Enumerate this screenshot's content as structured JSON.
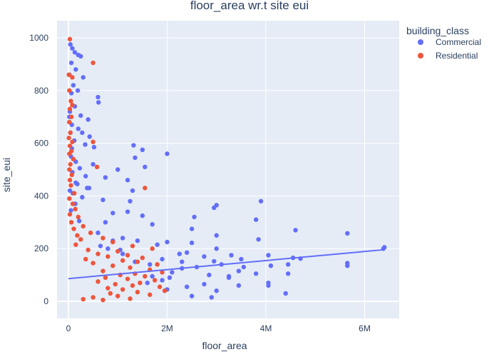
{
  "chart_data": {
    "type": "scatter",
    "title": "floor_area wr.t site eui",
    "xlabel": "floor_area",
    "ylabel": "site_eui",
    "xlim": [
      -230000,
      6700000
    ],
    "ylim": [
      -65,
      1065
    ],
    "x_ticks": [
      0,
      2000000,
      4000000,
      6000000
    ],
    "x_tick_labels": [
      "0",
      "2M",
      "4M",
      "6M"
    ],
    "y_ticks": [
      0,
      200,
      400,
      600,
      800,
      1000
    ],
    "y_tick_labels": [
      "0",
      "200",
      "400",
      "600",
      "800",
      "1000"
    ],
    "grid": true,
    "legend": {
      "title": "building_class",
      "position": "top-right"
    },
    "series": [
      {
        "name": "Commercial",
        "color": "#636efa",
        "points": [
          [
            40000,
            975
          ],
          [
            80000,
            960
          ],
          [
            130000,
            945
          ],
          [
            200000,
            935
          ],
          [
            250000,
            930
          ],
          [
            60000,
            905
          ],
          [
            150000,
            880
          ],
          [
            20000,
            860
          ],
          [
            300000,
            850
          ],
          [
            100000,
            820
          ],
          [
            190000,
            800
          ],
          [
            60000,
            790
          ],
          [
            600000,
            775
          ],
          [
            610000,
            755
          ],
          [
            130000,
            740
          ],
          [
            30000,
            720
          ],
          [
            250000,
            705
          ],
          [
            400000,
            690
          ],
          [
            70000,
            670
          ],
          [
            200000,
            655
          ],
          [
            280000,
            640
          ],
          [
            430000,
            625
          ],
          [
            120000,
            610
          ],
          [
            340000,
            595
          ],
          [
            1320000,
            592
          ],
          [
            520000,
            585
          ],
          [
            1500000,
            575
          ],
          [
            2000000,
            560
          ],
          [
            50000,
            550
          ],
          [
            1350000,
            545
          ],
          [
            150000,
            530
          ],
          [
            500000,
            520
          ],
          [
            230000,
            505
          ],
          [
            1550000,
            510
          ],
          [
            1000000,
            500
          ],
          [
            80000,
            490
          ],
          [
            350000,
            475
          ],
          [
            750000,
            470
          ],
          [
            1200000,
            460
          ],
          [
            180000,
            445
          ],
          [
            420000,
            430
          ],
          [
            1300000,
            420
          ],
          [
            90000,
            410
          ],
          [
            280000,
            395
          ],
          [
            700000,
            385
          ],
          [
            1250000,
            380
          ],
          [
            3900000,
            380
          ],
          [
            140000,
            370
          ],
          [
            3000000,
            365
          ],
          [
            2950000,
            355
          ],
          [
            50000,
            345
          ],
          [
            1200000,
            340
          ],
          [
            900000,
            335
          ],
          [
            1500000,
            325
          ],
          [
            2550000,
            320
          ],
          [
            3800000,
            310
          ],
          [
            220000,
            305
          ],
          [
            750000,
            300
          ],
          [
            1700000,
            292
          ],
          [
            2500000,
            275
          ],
          [
            4600000,
            270
          ],
          [
            5650000,
            258
          ],
          [
            3000000,
            250
          ],
          [
            1100000,
            240
          ],
          [
            3850000,
            235
          ],
          [
            1400000,
            230
          ],
          [
            2000000,
            225
          ],
          [
            2500000,
            222
          ],
          [
            1800000,
            215
          ],
          [
            650000,
            210
          ],
          [
            3000000,
            200
          ],
          [
            6400000,
            205
          ],
          [
            6380000,
            200
          ],
          [
            1050000,
            195
          ],
          [
            2400000,
            185
          ],
          [
            2250000,
            180
          ],
          [
            3300000,
            175
          ],
          [
            4050000,
            175
          ],
          [
            2750000,
            170
          ],
          [
            4550000,
            165
          ],
          [
            3500000,
            160
          ],
          [
            1900000,
            160
          ],
          [
            4700000,
            162
          ],
          [
            2950000,
            152
          ],
          [
            5650000,
            145
          ],
          [
            3100000,
            140
          ],
          [
            4450000,
            140
          ],
          [
            5650000,
            135
          ],
          [
            3550000,
            130
          ],
          [
            2600000,
            130
          ],
          [
            4100000,
            135
          ],
          [
            2300000,
            125
          ],
          [
            3450000,
            115
          ],
          [
            2100000,
            110
          ],
          [
            3800000,
            105
          ],
          [
            4450000,
            105
          ],
          [
            2850000,
            100
          ],
          [
            3250000,
            95
          ],
          [
            1700000,
            95
          ],
          [
            2050000,
            90
          ],
          [
            3250000,
            90
          ],
          [
            4050000,
            70
          ],
          [
            2750000,
            65
          ],
          [
            3450000,
            60
          ],
          [
            4050000,
            60
          ],
          [
            2400000,
            55
          ],
          [
            2000000,
            45
          ],
          [
            3000000,
            40
          ],
          [
            2500000,
            20
          ],
          [
            2900000,
            15
          ],
          [
            4400000,
            30
          ],
          [
            1600000,
            70
          ],
          [
            1900000,
            80
          ],
          [
            1650000,
            140
          ],
          [
            2300000,
            150
          ],
          [
            1350000,
            150
          ],
          [
            1100000,
            180
          ],
          [
            800000,
            200
          ],
          [
            900000,
            230
          ],
          [
            600000,
            260
          ],
          [
            30000,
            420
          ],
          [
            150000,
            450
          ],
          [
            70000,
            580
          ],
          [
            40000,
            640
          ],
          [
            20000,
            700
          ],
          [
            380000,
            430
          ]
        ]
      },
      {
        "name": "Residential",
        "color": "#ef553b",
        "points": [
          [
            30000,
            995
          ],
          [
            500000,
            905
          ],
          [
            10000,
            860
          ],
          [
            80000,
            850
          ],
          [
            20000,
            800
          ],
          [
            50000,
            760
          ],
          [
            80000,
            745
          ],
          [
            30000,
            730
          ],
          [
            60000,
            700
          ],
          [
            20000,
            680
          ],
          [
            40000,
            640
          ],
          [
            10000,
            620
          ],
          [
            80000,
            605
          ],
          [
            500000,
            605
          ],
          [
            30000,
            590
          ],
          [
            60000,
            570
          ],
          [
            20000,
            560
          ],
          [
            100000,
            540
          ],
          [
            40000,
            520
          ],
          [
            580000,
            510
          ],
          [
            20000,
            500
          ],
          [
            70000,
            480
          ],
          [
            30000,
            460
          ],
          [
            1550000,
            430
          ],
          [
            50000,
            440
          ],
          [
            120000,
            410
          ],
          [
            20000,
            390
          ],
          [
            90000,
            370
          ],
          [
            140000,
            350
          ],
          [
            30000,
            330
          ],
          [
            200000,
            320
          ],
          [
            60000,
            300
          ],
          [
            300000,
            285
          ],
          [
            110000,
            275
          ],
          [
            450000,
            260
          ],
          [
            180000,
            250
          ],
          [
            700000,
            240
          ],
          [
            250000,
            235
          ],
          [
            900000,
            225
          ],
          [
            150000,
            215
          ],
          [
            1300000,
            210
          ],
          [
            1700000,
            200
          ],
          [
            400000,
            195
          ],
          [
            1000000,
            190
          ],
          [
            600000,
            180
          ],
          [
            1200000,
            175
          ],
          [
            800000,
            170
          ],
          [
            1500000,
            165
          ],
          [
            350000,
            160
          ],
          [
            1100000,
            155
          ],
          [
            1400000,
            150
          ],
          [
            500000,
            145
          ],
          [
            1800000,
            140
          ],
          [
            900000,
            135
          ],
          [
            1250000,
            128
          ],
          [
            1650000,
            120
          ],
          [
            700000,
            115
          ],
          [
            1900000,
            110
          ],
          [
            1350000,
            105
          ],
          [
            1050000,
            100
          ],
          [
            1550000,
            95
          ],
          [
            750000,
            90
          ],
          [
            1200000,
            85
          ],
          [
            1750000,
            80
          ],
          [
            600000,
            75
          ],
          [
            1450000,
            70
          ],
          [
            950000,
            65
          ],
          [
            1300000,
            60
          ],
          [
            1850000,
            55
          ],
          [
            800000,
            50
          ],
          [
            1100000,
            45
          ],
          [
            1950000,
            40
          ],
          [
            1400000,
            35
          ],
          [
            850000,
            30
          ],
          [
            1650000,
            25
          ],
          [
            1000000,
            20
          ],
          [
            500000,
            15
          ],
          [
            1250000,
            10
          ],
          [
            700000,
            5
          ],
          [
            300000,
            8
          ]
        ]
      }
    ],
    "trendline": {
      "series": "Commercial",
      "color": "#636efa",
      "points": [
        [
          0,
          86
        ],
        [
          6400000,
          196
        ]
      ]
    }
  }
}
